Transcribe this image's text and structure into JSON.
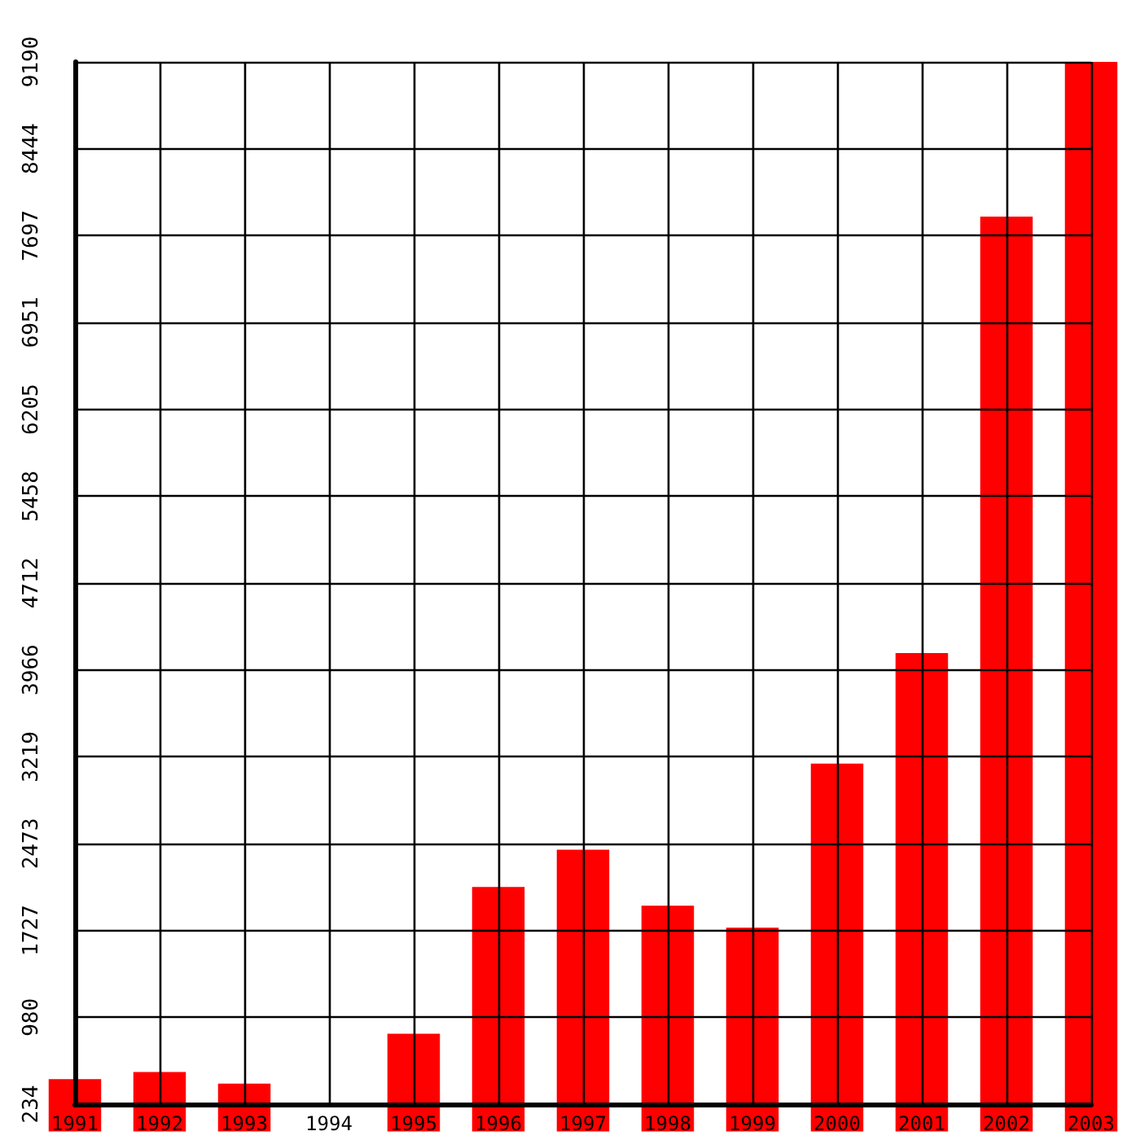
{
  "chart_data": {
    "type": "bar",
    "categories": [
      "1991",
      "1992",
      "1993",
      "1994",
      "1995",
      "1996",
      "1997",
      "1998",
      "1999",
      "2000",
      "2001",
      "2002",
      "2003"
    ],
    "values": [
      450,
      510,
      410,
      null,
      840,
      2100,
      2420,
      1940,
      1750,
      3160,
      4110,
      7860,
      9190
    ],
    "color": "#ff0000",
    "ylim": [
      234,
      9190
    ],
    "yticks": [
      234,
      980,
      1727,
      2473,
      3219,
      3966,
      4712,
      5458,
      6205,
      6951,
      7697,
      8444,
      9190
    ],
    "grid": true
  }
}
